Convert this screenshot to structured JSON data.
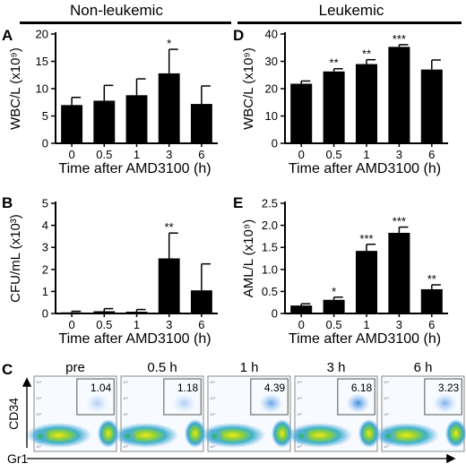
{
  "headers": {
    "left": "Non-leukemic",
    "right": "Leukemic"
  },
  "panel_letters": {
    "A": "A",
    "B": "B",
    "C": "C",
    "D": "D",
    "E": "E"
  },
  "chart_data": [
    {
      "id": "A",
      "type": "bar",
      "categories": [
        "0",
        "0.5",
        "1",
        "3",
        "6"
      ],
      "values": [
        7.0,
        7.8,
        8.8,
        12.8,
        7.2
      ],
      "errors": [
        1.4,
        2.8,
        3.0,
        4.4,
        3.3
      ],
      "significance": [
        "",
        "",
        "",
        "*",
        ""
      ],
      "xlabel": "Time after AMD3100 (h)",
      "ylabel": "WBC/L (x10⁹)",
      "ylim": [
        0,
        20
      ],
      "yticks": [
        0,
        5,
        10,
        15,
        20
      ]
    },
    {
      "id": "B",
      "type": "bar",
      "categories": [
        "0",
        "0.5",
        "1",
        "3",
        "6"
      ],
      "values": [
        0.05,
        0.1,
        0.08,
        2.5,
        1.05
      ],
      "errors": [
        0.05,
        0.12,
        0.1,
        1.15,
        1.2
      ],
      "significance": [
        "",
        "",
        "",
        "**",
        ""
      ],
      "xlabel": "Time after AMD3100 (h)",
      "ylabel": "CFU/mL (x10³)",
      "ylim": [
        0,
        5
      ],
      "yticks": [
        0,
        1,
        2,
        3,
        4,
        5
      ]
    },
    {
      "id": "D",
      "type": "bar",
      "categories": [
        "0",
        "0.5",
        "1",
        "3",
        "6"
      ],
      "values": [
        21.8,
        26.3,
        29.0,
        35.3,
        27.0
      ],
      "errors": [
        1.0,
        1.0,
        1.6,
        0.8,
        3.5
      ],
      "significance": [
        "",
        "**",
        "**",
        "***",
        ""
      ],
      "xlabel": "Time after AMD3100 (h)",
      "ylabel": "WBC/L (x10⁹)",
      "ylim": [
        0,
        40
      ],
      "yticks": [
        0,
        10,
        20,
        30,
        40
      ]
    },
    {
      "id": "E",
      "type": "bar",
      "categories": [
        "0",
        "0.5",
        "1",
        "3",
        "6"
      ],
      "values": [
        0.18,
        0.31,
        1.42,
        1.83,
        0.55
      ],
      "errors": [
        0.04,
        0.06,
        0.15,
        0.13,
        0.1
      ],
      "significance": [
        "",
        "*",
        "***",
        "***",
        "**"
      ],
      "xlabel": "Time after AMD3100 (h)",
      "ylabel": "AML/L (x10⁹)",
      "ylim": [
        0,
        2.5
      ],
      "yticks": [
        0,
        0.5,
        1.0,
        1.5,
        2.0,
        2.5
      ],
      "ytick_labels": [
        "0",
        "0.5",
        "1.0",
        "1.5",
        "2.0",
        "2.5"
      ]
    }
  ],
  "flow_panels": {
    "xlabel": "Gr1",
    "ylabel": "CD34",
    "axis_tick_labels": [
      "10⁴",
      "10³",
      "10²",
      "10¹",
      "10⁰"
    ],
    "plots": [
      {
        "title": "pre",
        "gate_value": "1.04"
      },
      {
        "title": "0.5 h",
        "gate_value": "1.18"
      },
      {
        "title": "1 h",
        "gate_value": "4.39"
      },
      {
        "title": "3 h",
        "gate_value": "6.18"
      },
      {
        "title": "6 h",
        "gate_value": "3.23"
      }
    ]
  }
}
